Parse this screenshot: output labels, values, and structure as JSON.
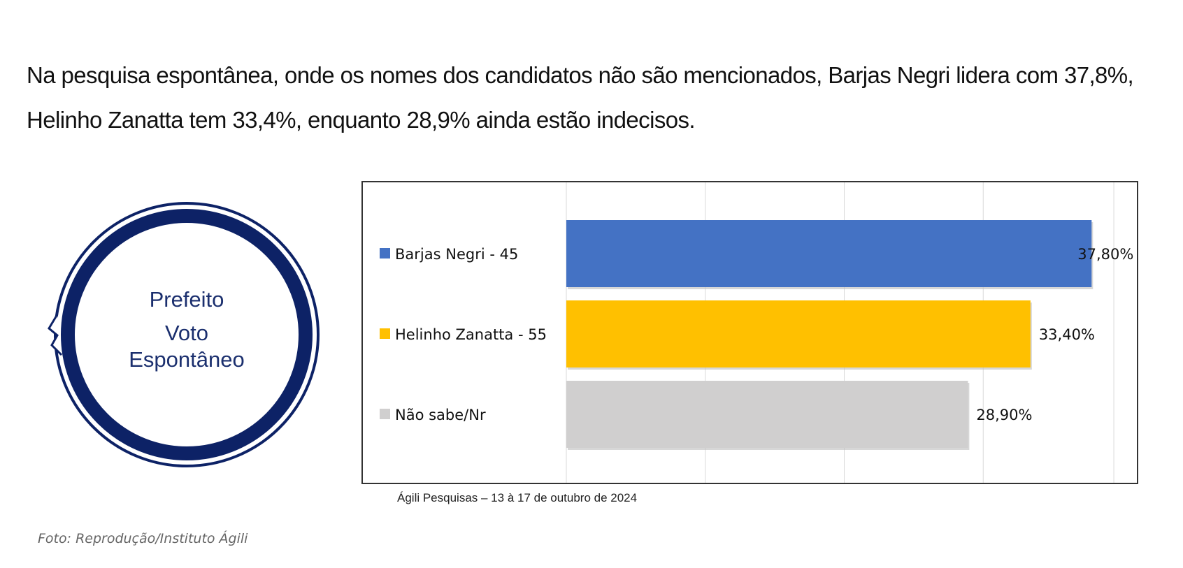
{
  "article": {
    "paragraph": "Na pesquisa espontânea, onde os nomes dos candidatos não são mencionados, Barjas Negri lidera com 37,8%, Helinho Zanatta tem 33,4%, enquanto 28,9% ainda estão indecisos."
  },
  "badge": {
    "line1": "Prefeito",
    "line2": "Voto",
    "line3": "Espontâneo",
    "color": "#0d2266"
  },
  "chart_data": {
    "type": "bar",
    "orientation": "horizontal",
    "categories": [
      "Barjas Negri - 45",
      "Helinho Zanatta - 55",
      "Não sabe/Nr"
    ],
    "values": [
      37.8,
      33.4,
      28.9
    ],
    "value_labels": [
      "37,80%",
      "33,40%",
      "28,90%"
    ],
    "colors": [
      "#4472c4",
      "#ffc000",
      "#d0cfcf"
    ],
    "xlim": [
      0,
      40
    ],
    "grid": true,
    "legend_position": "left"
  },
  "source": "Ágili Pesquisas – 13 à 17 de outubro de 2024",
  "credit": "Foto: Reprodução/Instituto Ágili"
}
